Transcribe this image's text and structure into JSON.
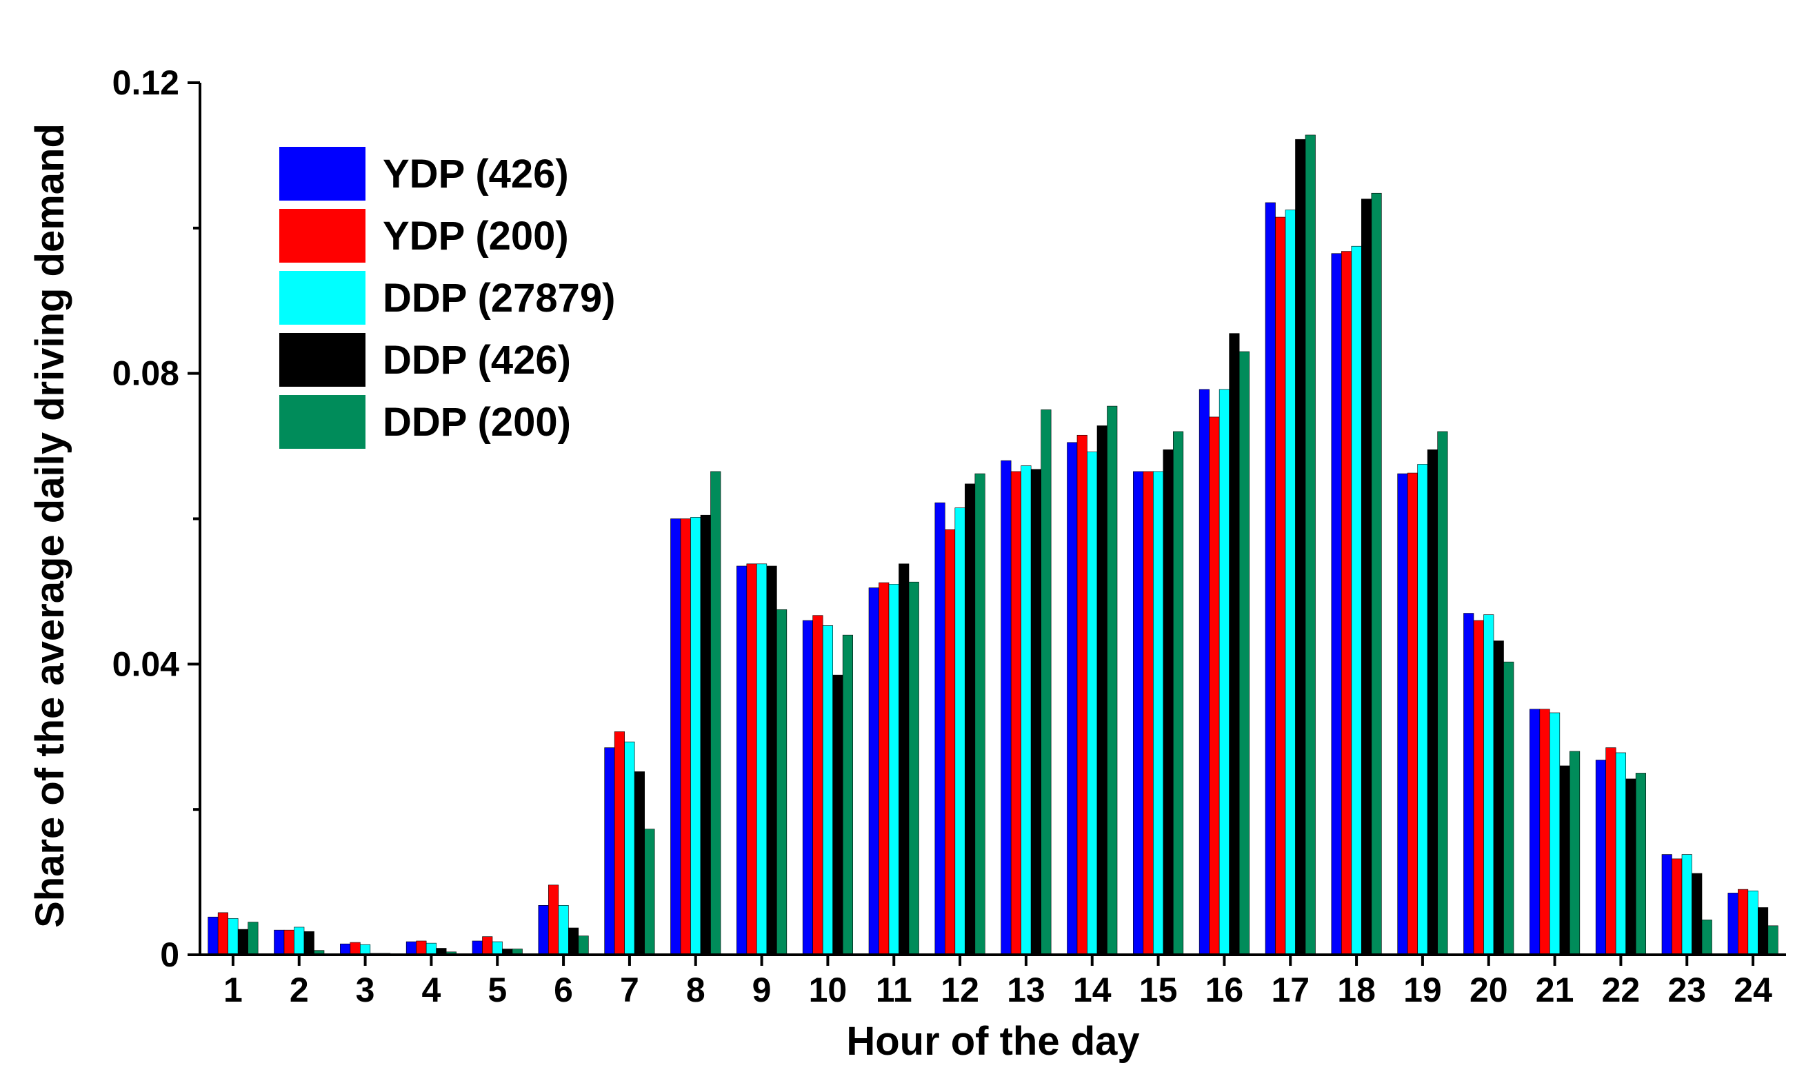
{
  "chart_data": {
    "type": "bar",
    "title": "",
    "xlabel": "Hour of the day",
    "ylabel": "Share of the average daily driving demand",
    "ylim": [
      0,
      0.12
    ],
    "yticks": [
      0,
      0.04,
      0.08,
      0.12
    ],
    "ytick_labels": [
      "0",
      "0.04",
      "0.08",
      "0.12"
    ],
    "grid": false,
    "legend_position": "top-left",
    "categories": [
      "1",
      "2",
      "3",
      "4",
      "5",
      "6",
      "7",
      "8",
      "9",
      "10",
      "11",
      "12",
      "13",
      "14",
      "15",
      "16",
      "17",
      "18",
      "19",
      "20",
      "21",
      "22",
      "23",
      "24"
    ],
    "series": [
      {
        "name": "YDP (426)",
        "color": "#0000ff",
        "values": [
          0.0052,
          0.0034,
          0.0015,
          0.0018,
          0.0019,
          0.0068,
          0.0285,
          0.06,
          0.0535,
          0.046,
          0.0505,
          0.0622,
          0.068,
          0.0705,
          0.0665,
          0.0778,
          0.1035,
          0.0965,
          0.0662,
          0.047,
          0.0338,
          0.0268,
          0.0138,
          0.0085
        ]
      },
      {
        "name": "YDP (200)",
        "color": "#ff0000",
        "values": [
          0.0058,
          0.0034,
          0.0017,
          0.0019,
          0.0025,
          0.0096,
          0.0307,
          0.06,
          0.0538,
          0.0467,
          0.0512,
          0.0585,
          0.0665,
          0.0715,
          0.0665,
          0.074,
          0.1015,
          0.0968,
          0.0663,
          0.046,
          0.0338,
          0.0285,
          0.0132,
          0.009
        ]
      },
      {
        "name": "DDP (27879)",
        "color": "#00ffff",
        "values": [
          0.005,
          0.0038,
          0.0014,
          0.0016,
          0.0018,
          0.0068,
          0.0293,
          0.0602,
          0.0538,
          0.0453,
          0.051,
          0.0615,
          0.0673,
          0.0692,
          0.0665,
          0.0778,
          0.1025,
          0.0975,
          0.0675,
          0.0468,
          0.0333,
          0.0278,
          0.0138,
          0.0088
        ]
      },
      {
        "name": "DDP (426)",
        "color": "#000000",
        "values": [
          0.0035,
          0.0032,
          0.0002,
          0.0009,
          0.0008,
          0.0037,
          0.0252,
          0.0605,
          0.0535,
          0.0385,
          0.0538,
          0.0648,
          0.0668,
          0.0728,
          0.0695,
          0.0855,
          0.1122,
          0.104,
          0.0695,
          0.0432,
          0.026,
          0.0242,
          0.0112,
          0.0065
        ]
      },
      {
        "name": "DDP (200)",
        "color": "#008c5a",
        "values": [
          0.0045,
          0.0006,
          0.0002,
          0.0004,
          0.0008,
          0.0026,
          0.0173,
          0.0665,
          0.0475,
          0.044,
          0.0513,
          0.0662,
          0.075,
          0.0755,
          0.072,
          0.083,
          0.1128,
          0.1048,
          0.072,
          0.0403,
          0.028,
          0.025,
          0.0048,
          0.004
        ]
      }
    ]
  }
}
